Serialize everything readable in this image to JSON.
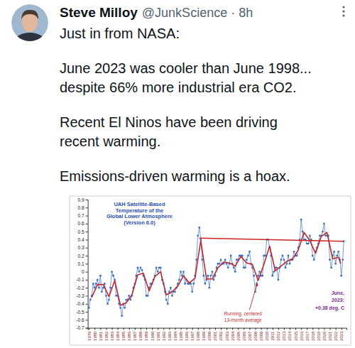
{
  "tweet": {
    "name": "Steve Milloy",
    "meta": "@JunkScience · 8h",
    "paragraphs": [
      [
        "Just in from NASA:"
      ],
      [
        "June 2023 was cooler than June 1998...",
        "despite 66% more industrial era CO2."
      ],
      [
        "Recent El Ninos have been driving",
        "recent warming."
      ],
      [
        "Emissions-driven warming is a hoax."
      ]
    ]
  },
  "chart_data": {
    "type": "line",
    "title": [
      "UAH Satellite-Based",
      "Temperature of the",
      "Global Lower Atmosphere",
      "(Version 6.0)"
    ],
    "xlim": [
      1978.8,
      2023.9
    ],
    "ylim": [
      -0.7,
      0.9
    ],
    "xticks": [
      1979,
      1980,
      1981,
      1982,
      1983,
      1984,
      1985,
      1986,
      1987,
      1988,
      1989,
      1990,
      1991,
      1992,
      1993,
      1994,
      1995,
      1996,
      1997,
      1998,
      1999,
      2000,
      2001,
      2002,
      2003,
      2004,
      2005,
      2006,
      2007,
      2008,
      2009,
      2010,
      2011,
      2012,
      2013,
      2014,
      2015,
      2016,
      2017,
      2018,
      2019,
      2020,
      2021,
      2022,
      2023
    ],
    "yticks": [
      -0.7,
      -0.6,
      -0.5,
      -0.4,
      -0.3,
      -0.2,
      -0.1,
      0,
      0.1,
      0.2,
      0.3,
      0.4,
      0.5,
      0.6,
      0.7,
      0.8,
      0.9
    ],
    "grid": false,
    "series": [
      {
        "type": "line",
        "marker": "circle",
        "line_style": "solid",
        "color": "#3a6fc4",
        "x": [
          1979,
          1979.25,
          1979.5,
          1979.75,
          1980,
          1980.25,
          1980.5,
          1980.75,
          1981,
          1981.25,
          1981.5,
          1981.75,
          1982,
          1982.25,
          1982.5,
          1982.75,
          1983,
          1983.25,
          1983.5,
          1983.75,
          1984,
          1984.25,
          1984.5,
          1984.75,
          1985,
          1985.25,
          1985.5,
          1985.75,
          1986,
          1986.25,
          1986.5,
          1986.75,
          1987,
          1987.25,
          1987.5,
          1987.75,
          1988,
          1988.25,
          1988.5,
          1988.75,
          1989,
          1989.25,
          1989.5,
          1989.75,
          1990,
          1990.25,
          1990.5,
          1990.75,
          1991,
          1991.25,
          1991.5,
          1991.75,
          1992,
          1992.25,
          1992.5,
          1992.75,
          1993,
          1993.25,
          1993.5,
          1993.75,
          1994,
          1994.25,
          1994.5,
          1994.75,
          1995,
          1995.25,
          1995.5,
          1995.75,
          1996,
          1996.25,
          1996.5,
          1996.75,
          1997,
          1997.25,
          1997.5,
          1997.75,
          1998,
          1998.25,
          1998.5,
          1998.75,
          1999,
          1999.25,
          1999.5,
          1999.75,
          2000,
          2000.25,
          2000.5,
          2000.75,
          2001,
          2001.25,
          2001.5,
          2001.75,
          2002,
          2002.25,
          2002.5,
          2002.75,
          2003,
          2003.25,
          2003.5,
          2003.75,
          2004,
          2004.25,
          2004.5,
          2004.75,
          2005,
          2005.25,
          2005.5,
          2005.75,
          2006,
          2006.25,
          2006.5,
          2006.75,
          2007,
          2007.25,
          2007.5,
          2007.75,
          2008,
          2008.25,
          2008.5,
          2008.75,
          2009,
          2009.25,
          2009.5,
          2009.75,
          2010,
          2010.25,
          2010.5,
          2010.75,
          2011,
          2011.25,
          2011.5,
          2011.75,
          2012,
          2012.25,
          2012.5,
          2012.75,
          2013,
          2013.25,
          2013.5,
          2013.75,
          2014,
          2014.25,
          2014.5,
          2014.75,
          2015,
          2015.25,
          2015.5,
          2015.75,
          2016,
          2016.25,
          2016.5,
          2016.75,
          2017,
          2017.25,
          2017.5,
          2017.75,
          2018,
          2018.25,
          2018.5,
          2018.75,
          2019,
          2019.25,
          2019.5,
          2019.75,
          2020,
          2020.25,
          2020.5,
          2020.75,
          2021,
          2021.25,
          2021.5,
          2021.75,
          2022,
          2022.25,
          2022.5,
          2022.75,
          2023,
          2023.25,
          2023.42
        ],
        "values": [
          -0.45,
          -0.35,
          -0.3,
          -0.15,
          -0.2,
          -0.15,
          -0.1,
          -0.2,
          -0.05,
          -0.25,
          -0.2,
          -0.15,
          -0.3,
          -0.4,
          -0.35,
          -0.2,
          0,
          -0.05,
          -0.1,
          -0.3,
          -0.3,
          -0.4,
          -0.45,
          -0.55,
          -0.4,
          -0.45,
          -0.35,
          -0.35,
          -0.3,
          -0.35,
          -0.3,
          -0.2,
          -0.15,
          -0.05,
          0.05,
          0,
          0.05,
          0.02,
          -0.05,
          -0.1,
          -0.3,
          -0.3,
          -0.2,
          -0.15,
          -0.15,
          -0.1,
          -0.05,
          0.05,
          0,
          0.05,
          0.05,
          -0.1,
          -0.15,
          -0.25,
          -0.35,
          -0.4,
          -0.25,
          -0.2,
          -0.3,
          -0.25,
          -0.25,
          -0.2,
          -0.15,
          -0.1,
          0,
          -0.05,
          0,
          -0.15,
          -0.1,
          -0.15,
          -0.15,
          -0.15,
          -0.25,
          -0.15,
          -0.05,
          0.15,
          0.45,
          0.55,
          0.4,
          0.15,
          -0.05,
          -0.15,
          -0.1,
          -0.05,
          -0.2,
          -0.05,
          0,
          -0.1,
          -0.05,
          0.05,
          0.1,
          0.1,
          0.15,
          0.1,
          0.1,
          0.15,
          0.1,
          0.05,
          0.1,
          0.2,
          0.1,
          0.05,
          0,
          0.15,
          0.15,
          0.2,
          0.2,
          0.2,
          0.05,
          0.05,
          0.15,
          0.2,
          0.25,
          0.1,
          0.05,
          -0.05,
          -0.25,
          -0.15,
          -0.05,
          0,
          -0.05,
          -0.05,
          0.2,
          0.2,
          0.4,
          0.4,
          0.3,
          0.2,
          -0.05,
          0,
          0.05,
          0.05,
          -0.1,
          0.05,
          0.15,
          0.2,
          0.15,
          0.05,
          0.1,
          0.2,
          0.1,
          0.15,
          0.15,
          0.25,
          0.2,
          0.2,
          0.3,
          0.4,
          0.65,
          0.5,
          0.4,
          0.4,
          0.35,
          0.35,
          0.45,
          0.4,
          0.2,
          0.15,
          0.25,
          0.3,
          0.35,
          0.45,
          0.45,
          0.5,
          0.6,
          0.45,
          0.45,
          0.45,
          0.15,
          0.05,
          0.2,
          0.25,
          0.1,
          0.2,
          0.25,
          0.15,
          -0.05,
          0.15,
          0.38
        ]
      },
      {
        "type": "line",
        "marker": "none",
        "line_style": "solid",
        "color": "#c0282d",
        "x": [
          1979.5,
          1980.5,
          1981.5,
          1982.5,
          1983.5,
          1984.5,
          1985.5,
          1986.5,
          1987.5,
          1988.5,
          1989.5,
          1990.5,
          1991.5,
          1992.5,
          1993.5,
          1994.5,
          1995.5,
          1996.5,
          1997.5,
          1998.5,
          1999.5,
          2000.5,
          2001.5,
          2002.5,
          2003.5,
          2004.5,
          2005.5,
          2006.5,
          2007.5,
          2008.5,
          2009.5,
          2010.5,
          2011.5,
          2012.5,
          2013.5,
          2014.5,
          2015.5,
          2016.5,
          2017.5,
          2018.5,
          2019.5,
          2020.5,
          2021.5,
          2022.5,
          2022.92
        ],
        "values": [
          -0.32,
          -0.16,
          -0.16,
          -0.31,
          -0.11,
          -0.42,
          -0.39,
          -0.29,
          -0.04,
          -0.02,
          -0.24,
          -0.06,
          0,
          -0.29,
          -0.25,
          -0.18,
          -0.05,
          -0.14,
          -0.08,
          0.39,
          -0.09,
          -0.09,
          0.05,
          0.12,
          0.11,
          0.07,
          0.19,
          0.11,
          0.09,
          -0.11,
          0.09,
          0.32,
          0.01,
          0.07,
          0.13,
          0.16,
          0.27,
          0.49,
          0.39,
          0.23,
          0.44,
          0.49,
          0.16,
          0.18,
          0.1
        ]
      },
      {
        "type": "line",
        "marker": "none",
        "line_style": "solid",
        "color": "#cc2222",
        "x": [
          1998.25,
          2023.42
        ],
        "values": [
          0.42,
          0.38
        ]
      }
    ],
    "annotations": [
      {
        "text": [
          "June,",
          "2023:",
          "+0.38 deg. C"
        ],
        "color": "#7a2a8a"
      },
      {
        "text": [
          "Running, centered",
          "13-month average"
        ],
        "color": "#c0282d"
      }
    ]
  }
}
